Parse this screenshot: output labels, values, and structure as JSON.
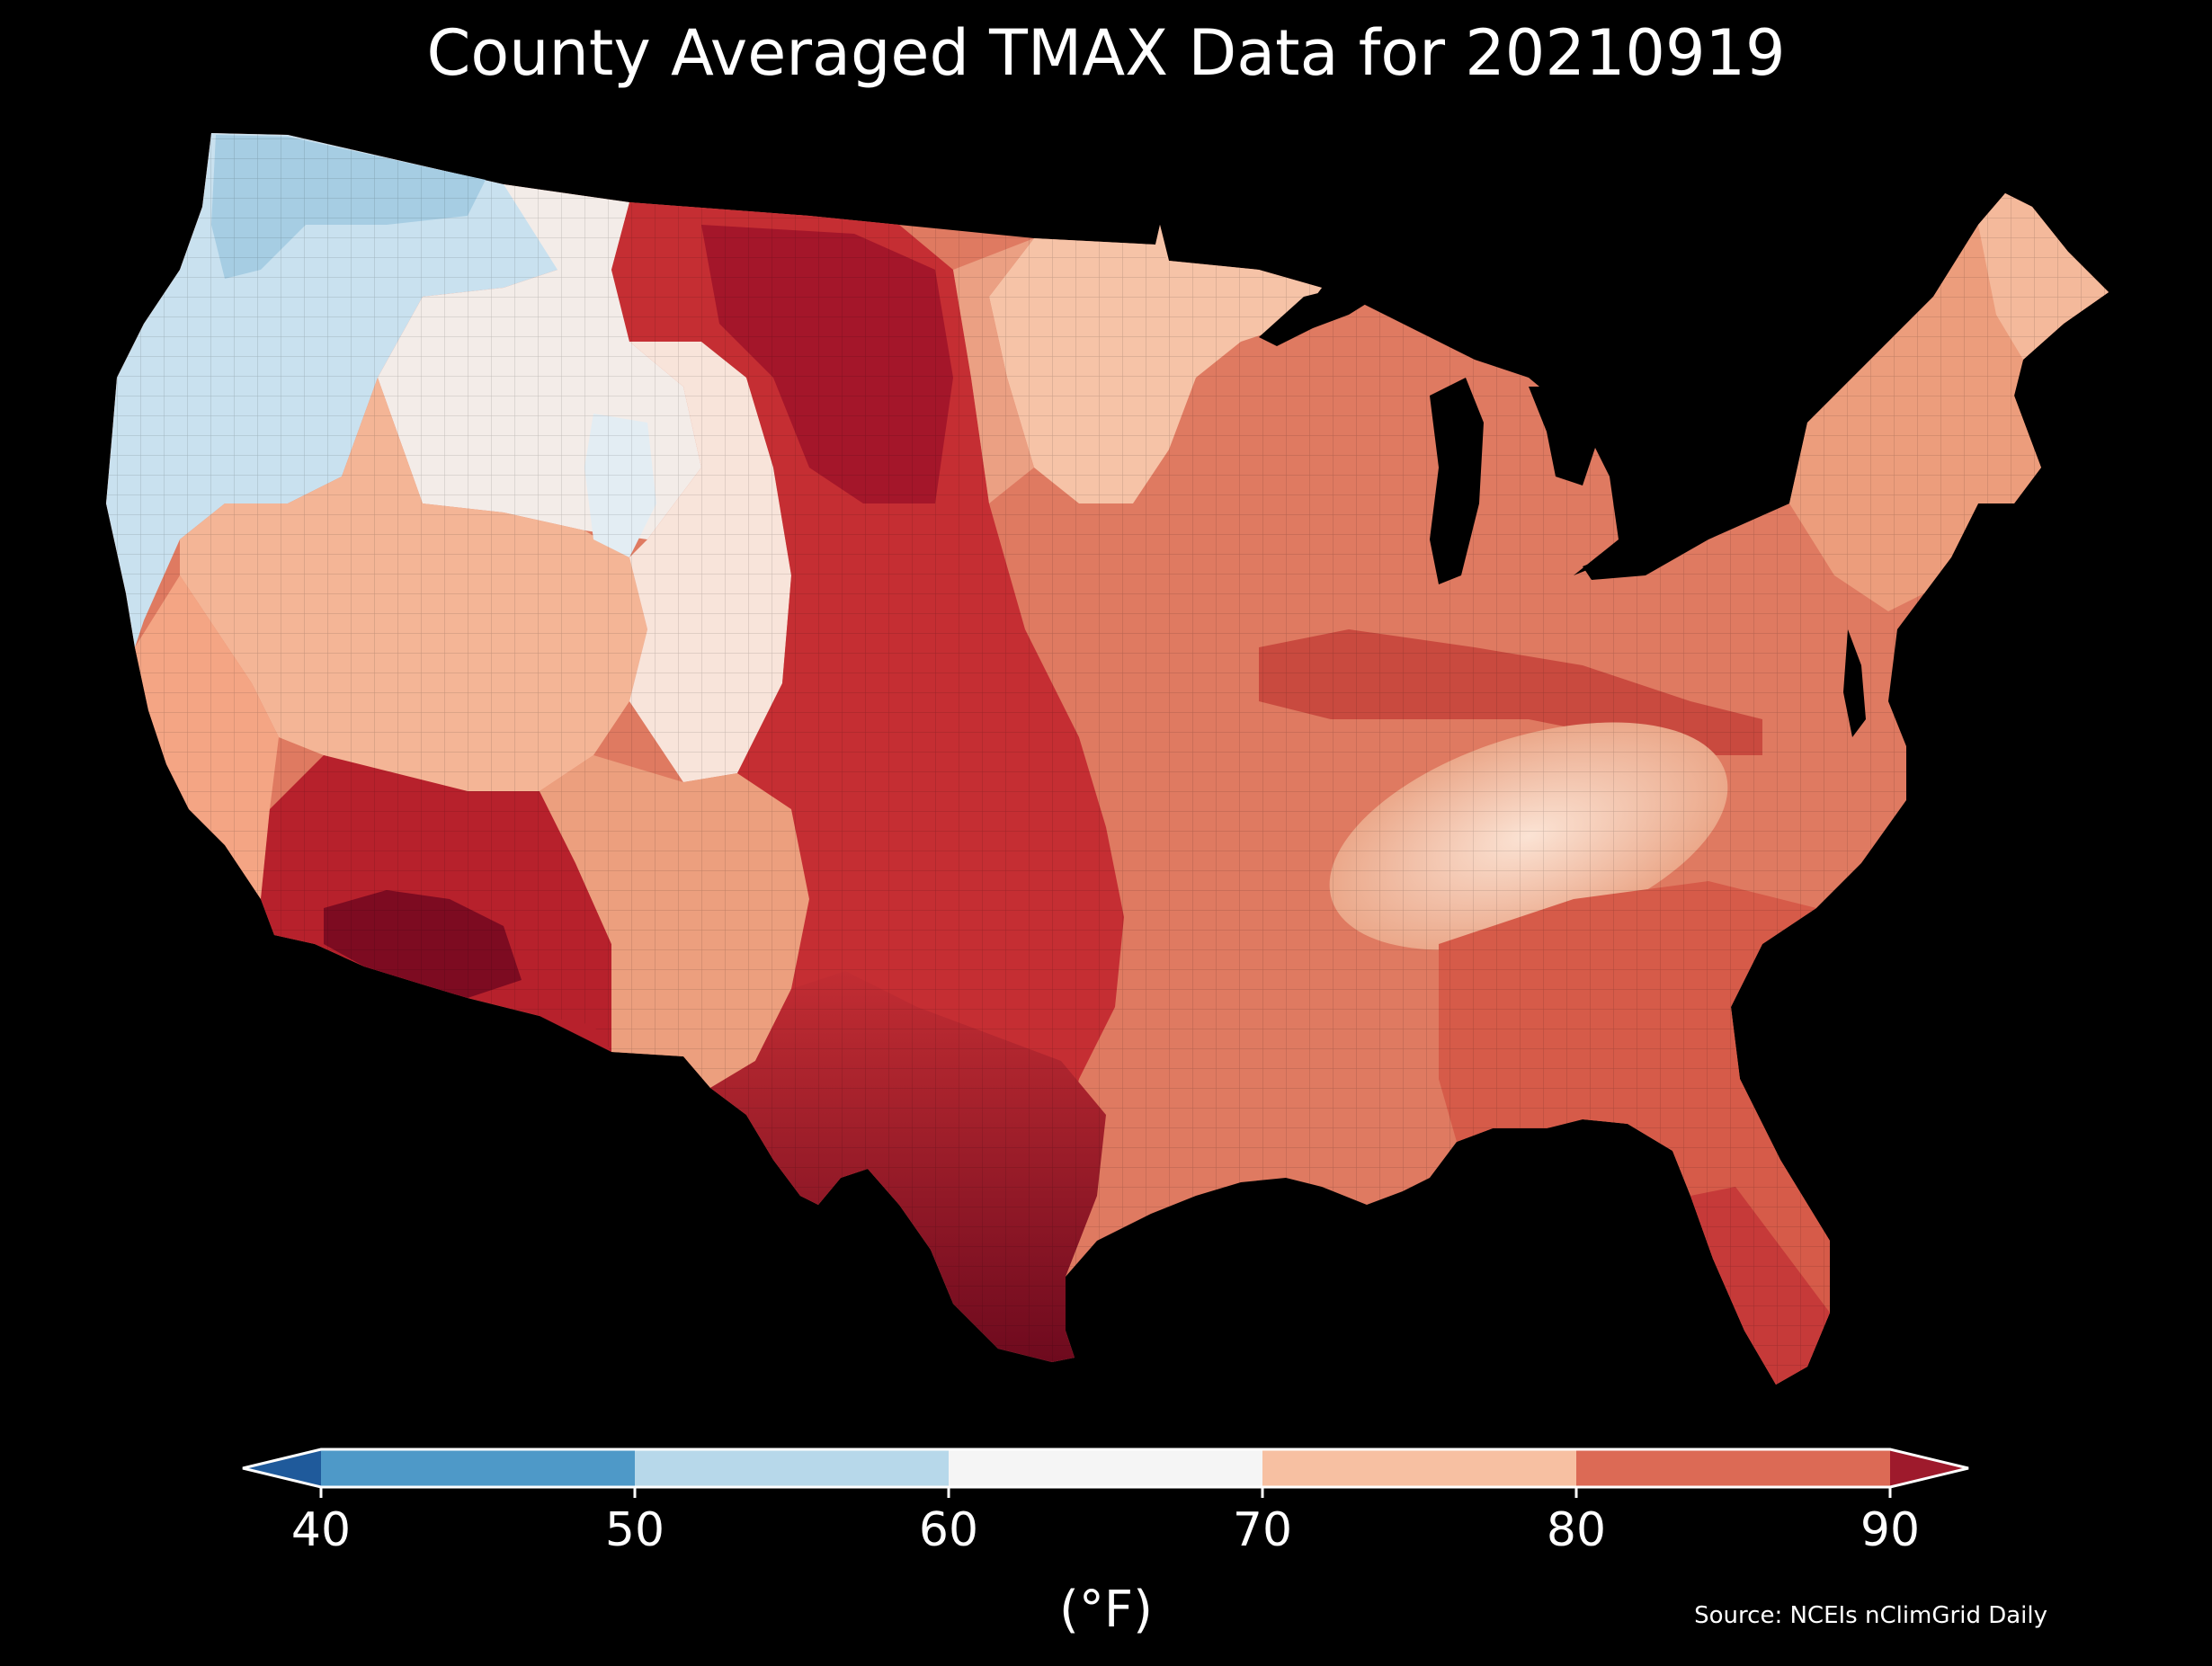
{
  "title": "County Averaged TMAX Data for 20210919",
  "colorbar": {
    "unit_label": "(°F)",
    "ticks": [
      "40",
      "50",
      "60",
      "70",
      "80",
      "90"
    ],
    "bins": [
      {
        "from": "below",
        "to": 40,
        "color": "#1f5a9b"
      },
      {
        "from": 40,
        "to": 50,
        "color": "#4e99c8"
      },
      {
        "from": 50,
        "to": 60,
        "color": "#b7d8ea"
      },
      {
        "from": 60,
        "to": 70,
        "color": "#f5f5f5"
      },
      {
        "from": 70,
        "to": 80,
        "color": "#f7c0a2"
      },
      {
        "from": 80,
        "to": 90,
        "color": "#dc6a55"
      },
      {
        "from": 90,
        "to": "above",
        "color": "#9e1a2c"
      }
    ]
  },
  "source": "Source: NCEIs nClimGrid Daily",
  "map": {
    "region": "Contiguous United States counties",
    "background": "#000000",
    "colors": {
      "pacific_northwest": "#c4dfee",
      "west_light": "#f2f2f2",
      "great_basin": "#f6b493",
      "desert_sw": "#b8212c",
      "deep_hot": "#7a0b20",
      "plains": "#c52f33",
      "midwest": "#e07f66",
      "upper_midwest": "#f6c7ad",
      "appalachia": "#f8d4bf",
      "southeast": "#d55a48",
      "northeast": "#e99877",
      "water": "#000000"
    }
  }
}
